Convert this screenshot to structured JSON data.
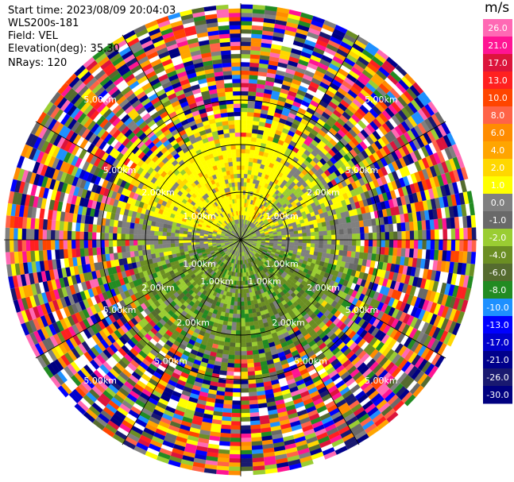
{
  "header": {
    "start_time": "Start time: 2023/08/09 20:04:03",
    "instrument": "WLS200s-181",
    "field": "Field: VEL",
    "elevation": "Elevation(deg): 35.30",
    "nrays": "NRays: 120"
  },
  "chart_data": {
    "type": "heatmap",
    "projection": "polar-ppi",
    "field": "VEL",
    "nrays": 120,
    "range_rings_km": [
      1,
      2,
      5
    ],
    "range_ring_labels": [
      "1.00km",
      "2.00km",
      "5.00km"
    ],
    "colorbar": {
      "unit": "m/s",
      "tick_labels": [
        "26.0",
        "21.0",
        "17.0",
        "13.0",
        "10.0",
        "8.0",
        "6.0",
        "4.0",
        "2.0",
        "1.0",
        "0.0",
        "-1.0",
        "-2.0",
        "-4.0",
        "-6.0",
        "-8.0",
        "-10.0",
        "-13.0",
        "-17.0",
        "-21.0",
        "-26.0",
        "-30.0"
      ],
      "colors": [
        "#ff69b4",
        "#ff1493",
        "#dc143c",
        "#ff2020",
        "#ff4500",
        "#ff6347",
        "#ff8c00",
        "#ffa500",
        "#ffd700",
        "#ffff00",
        "#808080",
        "#696969",
        "#9acd32",
        "#6b8e23",
        "#556b2f",
        "#228b22",
        "#1e90ff",
        "#0000ff",
        "#0000cd",
        "#00008b",
        "#191970",
        "#000080"
      ]
    },
    "pattern": "Near-range returns (<2 km) show positive velocities (yellow/orange) to the north and negative velocities (green/gray) to the south; beyond ~2.5 km the field is dominated by noisy multi-colored bins."
  }
}
